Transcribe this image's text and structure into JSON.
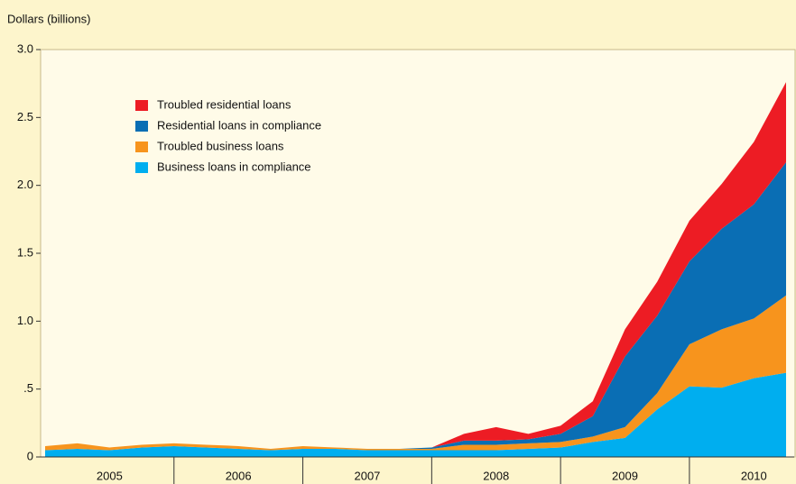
{
  "chart_data": {
    "type": "stacked-area",
    "y_axis_label": "Dollars (billions)",
    "x_labels": [
      "2005",
      "2006",
      "2007",
      "2008",
      "2009",
      "2010"
    ],
    "ylim": [
      0,
      3.0
    ],
    "yticks": [
      0,
      {
        "value": 0.5,
        "label": ".5"
      },
      {
        "value": 1.0,
        "label": "1.0"
      },
      1.5,
      {
        "value": 2.0,
        "label": "2.0"
      },
      2.5,
      {
        "value": 3.0,
        "label": "3.0"
      }
    ],
    "legend": "upper left",
    "series": [
      {
        "name": "Business loans in compliance",
        "color": "#00aeef",
        "values": [
          0.05,
          0.06,
          0.05,
          0.07,
          0.08,
          0.07,
          0.06,
          0.05,
          0.06,
          0.06,
          0.05,
          0.05,
          0.05,
          0.05,
          0.05,
          0.06,
          0.07,
          0.11,
          0.14,
          0.35,
          0.52,
          0.51,
          0.58,
          0.62
        ]
      },
      {
        "name": "Troubled business loans",
        "color": "#f7941d",
        "values": [
          0.03,
          0.04,
          0.02,
          0.02,
          0.02,
          0.02,
          0.02,
          0.01,
          0.02,
          0.01,
          0.01,
          0.01,
          0.01,
          0.04,
          0.04,
          0.04,
          0.04,
          0.04,
          0.08,
          0.12,
          0.31,
          0.43,
          0.44,
          0.57
        ]
      },
      {
        "name": "Residential loans in compliance",
        "color": "#0a6eb4",
        "values": [
          0,
          0,
          0,
          0,
          0,
          0,
          0,
          0,
          0,
          0,
          0,
          0,
          0.01,
          0.03,
          0.03,
          0.03,
          0.06,
          0.15,
          0.52,
          0.57,
          0.61,
          0.74,
          0.84,
          0.98
        ]
      },
      {
        "name": "Troubled residential loans",
        "color": "#ed1c24",
        "values": [
          0,
          0,
          0,
          0,
          0,
          0,
          0,
          0,
          0,
          0,
          0,
          0,
          0,
          0.05,
          0.1,
          0.04,
          0.06,
          0.11,
          0.2,
          0.25,
          0.3,
          0.33,
          0.46,
          0.59
        ]
      }
    ]
  }
}
